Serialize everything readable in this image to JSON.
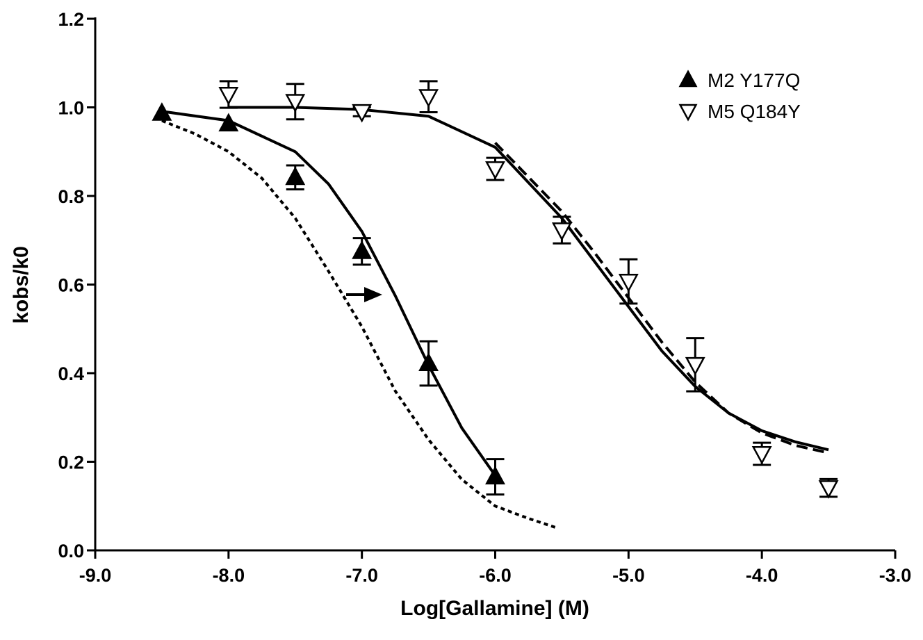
{
  "chart_data": {
    "type": "scatter",
    "xlabel": "Log[Gallamine] (M)",
    "ylabel": "kobs/k0",
    "xlim": [
      -9,
      -3
    ],
    "xticks": [
      {
        "value": -9,
        "label": "-9.0"
      },
      {
        "value": -8,
        "label": "-8.0"
      },
      {
        "value": -7,
        "label": "-7.0"
      },
      {
        "value": -6,
        "label": "-6.0"
      },
      {
        "value": -5,
        "label": "-5.0"
      },
      {
        "value": -4,
        "label": "-4.0"
      },
      {
        "value": -3,
        "label": "-3.0"
      }
    ],
    "ylim": [
      0,
      1.2
    ],
    "yticks": [
      {
        "value": 0,
        "label": "0.0"
      },
      0.2,
      0.4,
      0.6,
      0.8,
      {
        "value": 1,
        "label": "1.0"
      },
      1.2
    ],
    "legend": "upper right",
    "series": [
      {
        "name": "M2 Y177Q",
        "marker": "triangle-up",
        "filled": true,
        "color": "#000000",
        "x": [
          -8.5,
          -8,
          -7.5,
          -7,
          -6.5,
          -6
        ],
        "values": [
          0.987,
          0.963,
          0.842,
          0.675,
          0.422,
          0.166
        ],
        "errors": [
          null,
          null,
          0.027,
          0.03,
          0.05,
          0.04
        ]
      },
      {
        "name": "M5 Q184Y",
        "marker": "triangle-down",
        "filled": false,
        "color": "#000000",
        "x": [
          -8,
          -7.5,
          -7,
          -6.5,
          -6,
          -5.5,
          -5,
          -4.5,
          -4,
          -3.5
        ],
        "values": [
          1.029,
          1.013,
          0.99,
          1.024,
          0.861,
          0.723,
          0.607,
          0.419,
          0.218,
          0.141
        ],
        "errors": [
          0.03,
          0.04,
          0.01,
          0.035,
          0.025,
          0.03,
          0.05,
          0.06,
          0.025,
          0.02
        ]
      }
    ],
    "curves": [
      {
        "style": "solid",
        "color": "#000000",
        "x": [
          -8.5,
          -8,
          -7.5,
          -7.25,
          -7,
          -6.75,
          -6.5,
          -6.25,
          -6
        ],
        "values": [
          0.991,
          0.97,
          0.9,
          0.827,
          0.72,
          0.575,
          0.418,
          0.276,
          0.169
        ]
      },
      {
        "style": "dotted",
        "color": "#000000",
        "x": [
          -8.5,
          -8.25,
          -8,
          -7.75,
          -7.5,
          -7.25,
          -7,
          -6.75,
          -6.5,
          -6.25,
          -6,
          -5.75,
          -5.55
        ],
        "values": [
          0.97,
          0.94,
          0.9,
          0.84,
          0.75,
          0.63,
          0.505,
          0.36,
          0.25,
          0.16,
          0.1,
          0.072,
          0.052
        ]
      },
      {
        "style": "solid",
        "color": "#000000",
        "x": [
          -8,
          -7.5,
          -7,
          -6.5,
          -6,
          -5.5,
          -5.25,
          -5,
          -4.75,
          -4.5,
          -4.25,
          -4,
          -3.75,
          -3.5
        ],
        "values": [
          1.0,
          1.0,
          0.995,
          0.98,
          0.91,
          0.75,
          0.65,
          0.55,
          0.45,
          0.37,
          0.31,
          0.27,
          0.245,
          0.227
        ]
      },
      {
        "style": "dashed",
        "color": "#000000",
        "x": [
          -6,
          -5.5,
          -5.25,
          -5,
          -4.75,
          -4.5,
          -4.25,
          -4,
          -3.75,
          -3.5
        ],
        "values": [
          0.92,
          0.765,
          0.67,
          0.57,
          0.47,
          0.38,
          0.31,
          0.265,
          0.237,
          0.22
        ]
      }
    ]
  }
}
